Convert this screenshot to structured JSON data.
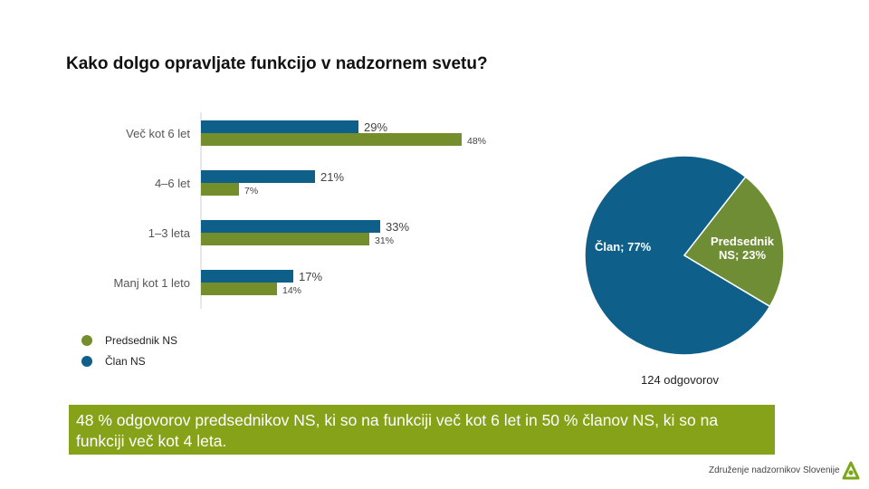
{
  "title": "Kako dolgo opravljate funkcijo v nadzornem svetu?",
  "chart_data": [
    {
      "type": "bar",
      "orientation": "horizontal",
      "categories": [
        "Več kot 6 let",
        "4–6 let",
        "1–3 leta",
        "Manj kot 1 leto"
      ],
      "series": [
        {
          "name": "Član NS",
          "values": [
            29,
            21,
            33,
            17
          ],
          "labels": [
            "29%",
            "21%",
            "33%",
            "17%"
          ],
          "color": "#0e5f8a"
        },
        {
          "name": "Predsednik NS",
          "values": [
            48,
            7,
            31,
            14
          ],
          "labels": [
            "48%",
            "7%",
            "31%",
            "14%"
          ],
          "color": "#748e2c"
        }
      ],
      "xlim": [
        0,
        100
      ],
      "legend": "bottom-left"
    },
    {
      "type": "pie",
      "slices": [
        {
          "label": "Član; 77%",
          "value": 77,
          "color": "#0e5f8a"
        },
        {
          "label_lines": [
            "Predsednik",
            "NS; 23%"
          ],
          "value": 23,
          "color": "#6f8d35"
        }
      ]
    }
  ],
  "legend": {
    "items": [
      {
        "label": "Predsednik NS",
        "color": "#748e2c"
      },
      {
        "label": "Član NS",
        "color": "#0e5f8a"
      }
    ]
  },
  "responses": "124 odgovorov",
  "highlight": "48 % odgovorov predsednikov NS, ki so na funkciji več kot 6 let in 50 % članov NS, ki so na funkciji več kot 4 leta.",
  "footer": "Združenje nadzornikov Slovenije",
  "colors": {
    "highlight_bg": "#86a219",
    "logo_green": "#7aa61a"
  },
  "logo_icon": "triangle-logo-icon"
}
